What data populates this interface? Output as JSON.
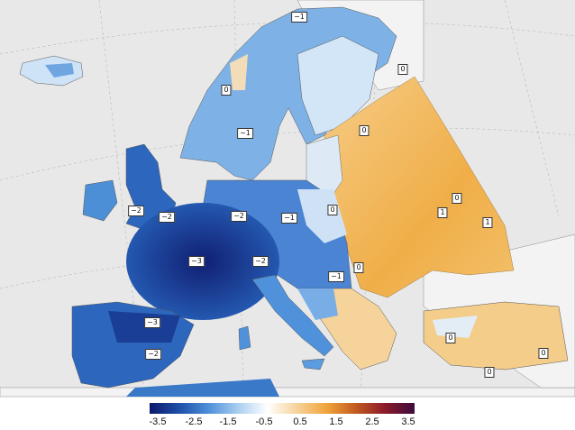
{
  "map": {
    "colors": {
      "sea": "#e9e9e9",
      "neutral_land": "#ececec",
      "strong_cold": "#13237a",
      "cold": "#2d66bd",
      "mild_cold": "#5b9be0",
      "near_zero": "#dcebf8",
      "warm": "#f2b553",
      "mild_warm": "#f7d8a2"
    },
    "anomaly_labels": [
      {
        "id": "north-cape",
        "text": "−1"
      },
      {
        "id": "russia-north",
        "text": "0"
      },
      {
        "id": "norway-west",
        "text": "0"
      },
      {
        "id": "sweden",
        "text": "−1"
      },
      {
        "id": "baltic-east",
        "text": "0"
      },
      {
        "id": "uk-west",
        "text": "−2"
      },
      {
        "id": "uk-east",
        "text": "−2"
      },
      {
        "id": "germany",
        "text": "−2"
      },
      {
        "id": "poland",
        "text": "−1"
      },
      {
        "id": "belarus",
        "text": "0"
      },
      {
        "id": "russia-central",
        "text": "0"
      },
      {
        "id": "ukraine",
        "text": "1"
      },
      {
        "id": "russia-south",
        "text": "1"
      },
      {
        "id": "france",
        "text": "−3"
      },
      {
        "id": "alps",
        "text": "−2"
      },
      {
        "id": "balkans-west",
        "text": "−1"
      },
      {
        "id": "romania",
        "text": "0"
      },
      {
        "id": "spain-north",
        "text": "−3"
      },
      {
        "id": "spain-south",
        "text": "−2"
      },
      {
        "id": "turkey-west",
        "text": "0"
      },
      {
        "id": "turkey-east",
        "text": "0"
      },
      {
        "id": "cyprus",
        "text": "0"
      }
    ]
  },
  "legend": {
    "stops": [
      "#0a1a6b",
      "#1f4fa8",
      "#4e8fd9",
      "#a9cff0",
      "#ffffff",
      "#f7d29a",
      "#f0a53b",
      "#c25a1f",
      "#8a1a2a",
      "#3d0b3e"
    ],
    "ticks": [
      "-3.5",
      "-2.5",
      "-1.5",
      "-0.5",
      "0.5",
      "1.5",
      "2.5",
      "3.5"
    ]
  }
}
